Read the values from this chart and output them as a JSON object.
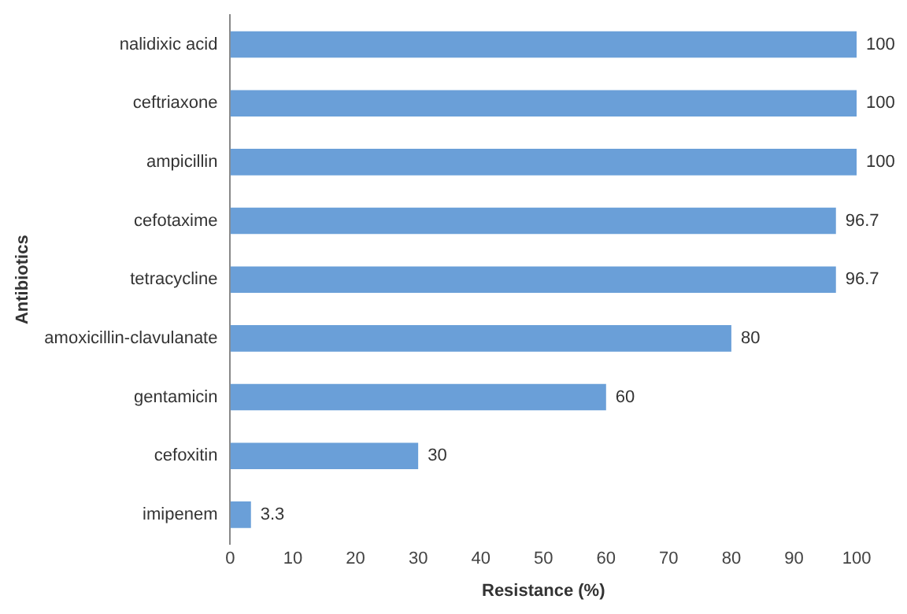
{
  "chart_data": {
    "type": "bar",
    "orientation": "horizontal",
    "xlabel": "Resistance (%)",
    "ylabel": "Antibiotics",
    "categories": [
      "nalidixic acid",
      "ceftriaxone",
      "ampicillin",
      "cefotaxime",
      "tetracycline",
      "amoxicillin-clavulanate",
      "gentamicin",
      "cefoxitin",
      "imipenem"
    ],
    "values": [
      100,
      100,
      100,
      96.7,
      96.7,
      80,
      60,
      30,
      3.3
    ],
    "color": "#6a9fd8",
    "xlim": [
      0,
      100
    ],
    "xticks": [
      0,
      10,
      20,
      30,
      40,
      50,
      60,
      70,
      80,
      90,
      100
    ],
    "grid": false,
    "legend": false,
    "data_labels": true
  }
}
